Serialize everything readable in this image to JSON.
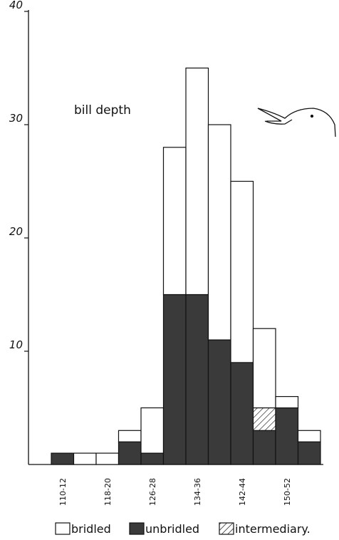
{
  "chart_data": {
    "type": "bar",
    "annotation": "bill depth",
    "categories": [
      "110-12",
      null,
      "118-20",
      null,
      "126-28",
      null,
      "134-36",
      null,
      "142-44",
      null,
      "150-52",
      null
    ],
    "series": [
      {
        "name": "bridled",
        "color": "#ffffff",
        "values": [
          0,
          1,
          1,
          1,
          4,
          13,
          20,
          19,
          16,
          7,
          1,
          1
        ]
      },
      {
        "name": "unbridled",
        "color": "#3a3a3a",
        "values": [
          1,
          0,
          0,
          2,
          1,
          15,
          15,
          11,
          9,
          3,
          5,
          2
        ]
      },
      {
        "name": "intermediary.",
        "color": "#000000",
        "values": [
          0,
          0,
          0,
          0,
          0,
          0,
          0,
          0,
          0,
          2,
          0,
          0
        ]
      }
    ],
    "stacked": true,
    "ylim": [
      0,
      40
    ],
    "yticks": [
      10,
      20,
      30,
      40
    ]
  }
}
